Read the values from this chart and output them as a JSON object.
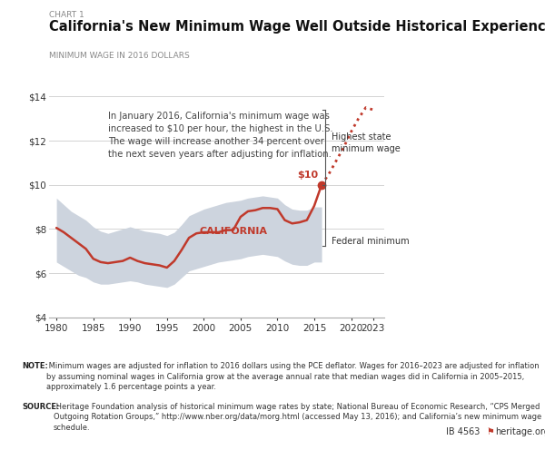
{
  "chart_label": "CHART 1",
  "title": "California's New Minimum Wage Well Outside Historical Experience",
  "ylabel": "MINIMUM WAGE IN 2016 DOLLARS",
  "ylim": [
    4,
    14.5
  ],
  "xlim": [
    1979,
    2024.5
  ],
  "yticks": [
    4,
    6,
    8,
    10,
    12,
    14
  ],
  "xticks": [
    1980,
    1985,
    1990,
    1995,
    2000,
    2005,
    2010,
    2015,
    2020,
    2023
  ],
  "background_color": "#ffffff",
  "ca_line_color": "#c0392b",
  "band_color": "#cdd4de",
  "ca_years": [
    1980,
    1981,
    1982,
    1983,
    1984,
    1985,
    1986,
    1987,
    1988,
    1989,
    1990,
    1991,
    1992,
    1993,
    1994,
    1995,
    1996,
    1997,
    1998,
    1999,
    2000,
    2001,
    2002,
    2003,
    2004,
    2005,
    2006,
    2007,
    2008,
    2009,
    2010,
    2011,
    2012,
    2013,
    2014,
    2015,
    2016
  ],
  "ca_values": [
    8.05,
    7.85,
    7.6,
    7.35,
    7.1,
    6.65,
    6.5,
    6.45,
    6.5,
    6.55,
    6.7,
    6.55,
    6.45,
    6.4,
    6.35,
    6.25,
    6.55,
    7.05,
    7.6,
    7.8,
    7.85,
    7.85,
    7.85,
    7.95,
    7.95,
    8.55,
    8.8,
    8.85,
    8.95,
    8.95,
    8.9,
    8.4,
    8.25,
    8.3,
    8.4,
    9.05,
    10.0
  ],
  "proj_years": [
    2016,
    2017,
    2018,
    2019,
    2020,
    2021,
    2022,
    2023
  ],
  "proj_values": [
    10.0,
    10.5,
    11.1,
    11.7,
    12.4,
    13.0,
    13.5,
    13.4
  ],
  "band_years": [
    1980,
    1981,
    1982,
    1983,
    1984,
    1985,
    1986,
    1987,
    1988,
    1989,
    1990,
    1991,
    1992,
    1993,
    1994,
    1995,
    1996,
    1997,
    1998,
    1999,
    2000,
    2001,
    2002,
    2003,
    2004,
    2005,
    2006,
    2007,
    2008,
    2009,
    2010,
    2011,
    2012,
    2013,
    2014,
    2015,
    2016
  ],
  "band_upper": [
    9.4,
    9.1,
    8.8,
    8.6,
    8.4,
    8.1,
    7.9,
    7.8,
    7.9,
    8.0,
    8.1,
    8.0,
    7.9,
    7.85,
    7.8,
    7.7,
    7.85,
    8.2,
    8.6,
    8.75,
    8.9,
    9.0,
    9.1,
    9.2,
    9.25,
    9.3,
    9.4,
    9.45,
    9.5,
    9.45,
    9.4,
    9.1,
    8.9,
    8.85,
    8.85,
    9.0,
    9.0
  ],
  "band_lower": [
    6.5,
    6.3,
    6.1,
    5.9,
    5.8,
    5.6,
    5.5,
    5.5,
    5.55,
    5.6,
    5.65,
    5.6,
    5.5,
    5.45,
    5.4,
    5.35,
    5.5,
    5.8,
    6.1,
    6.2,
    6.3,
    6.4,
    6.5,
    6.55,
    6.6,
    6.65,
    6.75,
    6.8,
    6.85,
    6.8,
    6.75,
    6.55,
    6.4,
    6.35,
    6.35,
    6.5,
    6.5
  ],
  "annotation_text": "In January 2016, California's minimum wage was\nincreased to $10 per hour, the highest in the U.S.\nThe wage will increase another 34 percent over\nthe next seven years after adjusting for inflation.",
  "note_bold": "NOTE:",
  "note_text": " Minimum wages are adjusted for inflation to 2016 dollars using the PCE deflator. Wages for 2016–2023 are adjusted for inflation by assuming nominal wages in California grow at the average annual rate that median wages did in California in 2005–2015, approximately 1.6 percentage points a year.",
  "source_bold": "SOURCE:",
  "source_text": " Heritage Foundation analysis of historical minimum wage rates by state; National Bureau of Economic Research, “CPS Merged Outgoing Rotation Groups,” http://www.nber.org/data/morg.html (accessed May 13, 2016); and California’s new minimum wage schedule.",
  "ib_text": "IB 4563",
  "heritage_text": "heritage.org",
  "federal_min_value": 7.25
}
